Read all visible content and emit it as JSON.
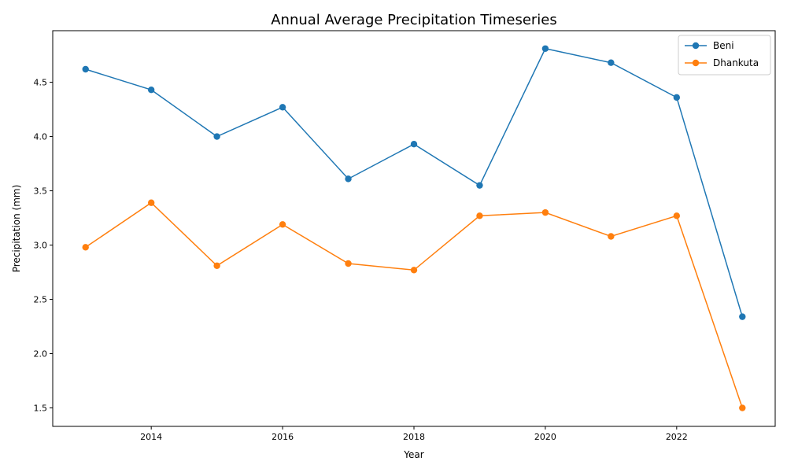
{
  "chart_data": {
    "type": "line",
    "title": "Annual Average Precipitation Timeseries",
    "xlabel": "Year",
    "ylabel": "Precipitation (mm)",
    "x": [
      2013,
      2014,
      2015,
      2016,
      2017,
      2018,
      2019,
      2020,
      2021,
      2022,
      2023
    ],
    "xlim": [
      2012.5,
      2023.5
    ],
    "ylim": [
      1.33,
      4.975
    ],
    "xticks": [
      2014,
      2016,
      2018,
      2020,
      2022
    ],
    "yticks": [
      1.5,
      2.0,
      2.5,
      3.0,
      3.5,
      4.0,
      4.5
    ],
    "xtick_labels": [
      "2014",
      "2016",
      "2018",
      "2020",
      "2022"
    ],
    "ytick_labels": [
      "1.5",
      "2.0",
      "2.5",
      "3.0",
      "3.5",
      "4.0",
      "4.5"
    ],
    "grid": false,
    "legend_position": "top-right",
    "series": [
      {
        "name": "Beni",
        "color": "#1f77b4",
        "marker": "circle",
        "values": [
          4.62,
          4.43,
          4.0,
          4.27,
          3.61,
          3.93,
          3.55,
          4.81,
          4.68,
          4.36,
          2.34
        ]
      },
      {
        "name": "Dhankuta",
        "color": "#ff7f0e",
        "marker": "circle",
        "values": [
          2.98,
          3.39,
          2.81,
          3.19,
          2.83,
          2.77,
          3.27,
          3.3,
          3.08,
          3.27,
          1.5
        ]
      }
    ]
  }
}
